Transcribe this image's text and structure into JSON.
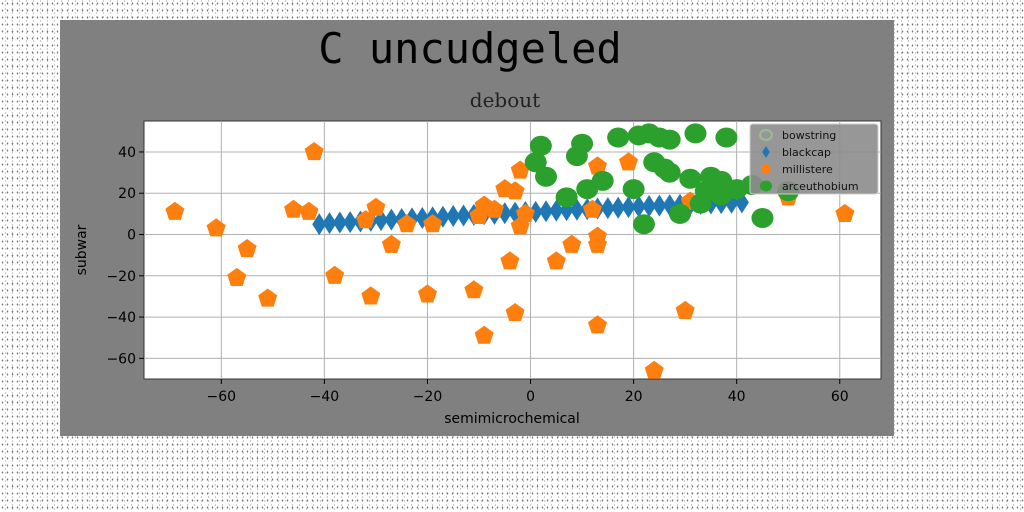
{
  "chart_data": {
    "type": "scatter",
    "title": "C uncudgeled",
    "subtitle": "debout",
    "xlabel": "semimicrochemical",
    "ylabel": "subwar",
    "xlim": [
      -75,
      68
    ],
    "ylim": [
      -70,
      55
    ],
    "xticks": [
      -60,
      -40,
      -20,
      0,
      20,
      40,
      60
    ],
    "yticks": [
      -60,
      -40,
      -20,
      0,
      20,
      40
    ],
    "grid": true,
    "legend_position": "top-right",
    "series": [
      {
        "name": "bowstring",
        "marker": "circle",
        "color": "#9dbc8f",
        "points": []
      },
      {
        "name": "blackcap",
        "marker": "diamond",
        "color": "#1f77b4",
        "points": [
          [
            -41,
            5
          ],
          [
            -39,
            5.5
          ],
          [
            -37,
            5.8
          ],
          [
            -35,
            6
          ],
          [
            -33,
            6.3
          ],
          [
            -31,
            6.6
          ],
          [
            -29,
            7
          ],
          [
            -27,
            7.2
          ],
          [
            -25,
            7.5
          ],
          [
            -23,
            7.8
          ],
          [
            -21,
            8
          ],
          [
            -19,
            8.3
          ],
          [
            -17,
            8.6
          ],
          [
            -15,
            9
          ],
          [
            -13,
            9.2
          ],
          [
            -11,
            9.5
          ],
          [
            -9,
            9.8
          ],
          [
            -7,
            10
          ],
          [
            -5,
            10.3
          ],
          [
            -3,
            10.6
          ],
          [
            -1,
            10.9
          ],
          [
            1,
            11
          ],
          [
            3,
            11.3
          ],
          [
            5,
            11.6
          ],
          [
            7,
            11.8
          ],
          [
            9,
            12
          ],
          [
            11,
            12.3
          ],
          [
            13,
            12.6
          ],
          [
            15,
            12.8
          ],
          [
            17,
            13
          ],
          [
            19,
            13.3
          ],
          [
            21,
            13.6
          ],
          [
            23,
            13.8
          ],
          [
            25,
            14
          ],
          [
            27,
            14.2
          ],
          [
            29,
            14.4
          ],
          [
            31,
            14.6
          ],
          [
            33,
            14.8
          ],
          [
            35,
            15
          ],
          [
            37,
            15.2
          ],
          [
            39,
            15.4
          ],
          [
            41,
            15.6
          ]
        ]
      },
      {
        "name": "millistere",
        "marker": "pentagon",
        "color": "#ff7f0e",
        "points": [
          [
            -69,
            11
          ],
          [
            -61,
            3
          ],
          [
            -55,
            -7
          ],
          [
            -57,
            -21
          ],
          [
            -51,
            -31
          ],
          [
            -46,
            12
          ],
          [
            -43,
            11
          ],
          [
            -42,
            40
          ],
          [
            -38,
            -20
          ],
          [
            -31,
            -30
          ],
          [
            -30,
            13
          ],
          [
            -32,
            7
          ],
          [
            -27,
            -5
          ],
          [
            -24,
            5
          ],
          [
            -20,
            -29
          ],
          [
            -19,
            5
          ],
          [
            -11,
            -27
          ],
          [
            -10,
            9
          ],
          [
            -9,
            14
          ],
          [
            -9,
            -49
          ],
          [
            -7,
            12
          ],
          [
            -4,
            -13
          ],
          [
            -5,
            22
          ],
          [
            -3,
            21
          ],
          [
            -3,
            -38
          ],
          [
            -2,
            4
          ],
          [
            -2,
            31
          ],
          [
            -1,
            10
          ],
          [
            5,
            -13
          ],
          [
            8,
            -5
          ],
          [
            12,
            12
          ],
          [
            13,
            33
          ],
          [
            13,
            -1
          ],
          [
            13,
            -5
          ],
          [
            13,
            -44
          ],
          [
            19,
            35
          ],
          [
            24,
            -66
          ],
          [
            30,
            -37
          ],
          [
            31,
            16
          ],
          [
            50,
            18
          ],
          [
            61,
            10
          ]
        ]
      },
      {
        "name": "arceuthobium",
        "marker": "circle",
        "color": "#2ca02c",
        "points": [
          [
            1,
            35
          ],
          [
            2,
            43
          ],
          [
            3,
            28
          ],
          [
            7,
            18
          ],
          [
            9,
            38
          ],
          [
            10,
            44
          ],
          [
            11,
            22
          ],
          [
            14,
            26
          ],
          [
            17,
            47
          ],
          [
            20,
            22
          ],
          [
            21,
            48
          ],
          [
            23,
            49
          ],
          [
            25,
            47
          ],
          [
            24,
            35
          ],
          [
            26,
            32
          ],
          [
            27,
            30
          ],
          [
            27,
            46
          ],
          [
            29,
            10
          ],
          [
            31,
            27
          ],
          [
            32,
            49
          ],
          [
            33,
            15
          ],
          [
            34,
            21
          ],
          [
            35,
            28
          ],
          [
            37,
            26
          ],
          [
            37,
            19
          ],
          [
            38,
            47
          ],
          [
            40,
            22
          ],
          [
            43,
            24
          ],
          [
            45,
            8
          ],
          [
            50,
            21
          ],
          [
            22,
            5
          ]
        ]
      }
    ]
  }
}
